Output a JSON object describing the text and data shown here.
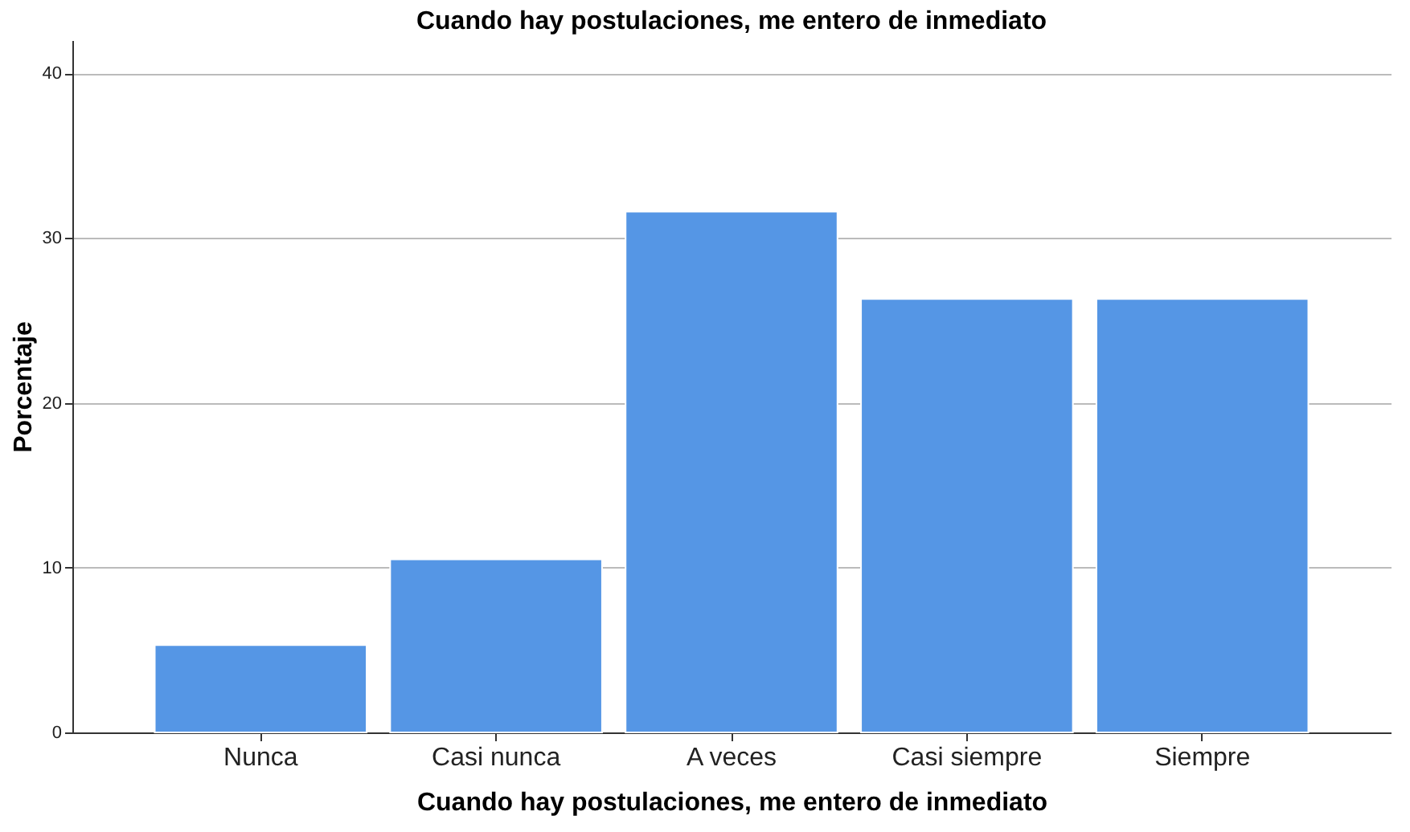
{
  "chart_data": {
    "type": "bar",
    "title": "Cuando hay postulaciones, me entero de inmediato",
    "xlabel": "Cuando hay postulaciones, me entero de inmediato",
    "ylabel": "Porcentaje",
    "categories": [
      "Nunca",
      "Casi nunca",
      "A veces",
      "Casi siempre",
      "Siempre"
    ],
    "values": [
      5.3,
      10.5,
      31.6,
      26.3,
      26.3
    ],
    "color": "#5596e5",
    "ylim": [
      0,
      42
    ],
    "yticks": [
      0,
      10,
      20,
      30,
      40
    ],
    "grid": "y"
  }
}
